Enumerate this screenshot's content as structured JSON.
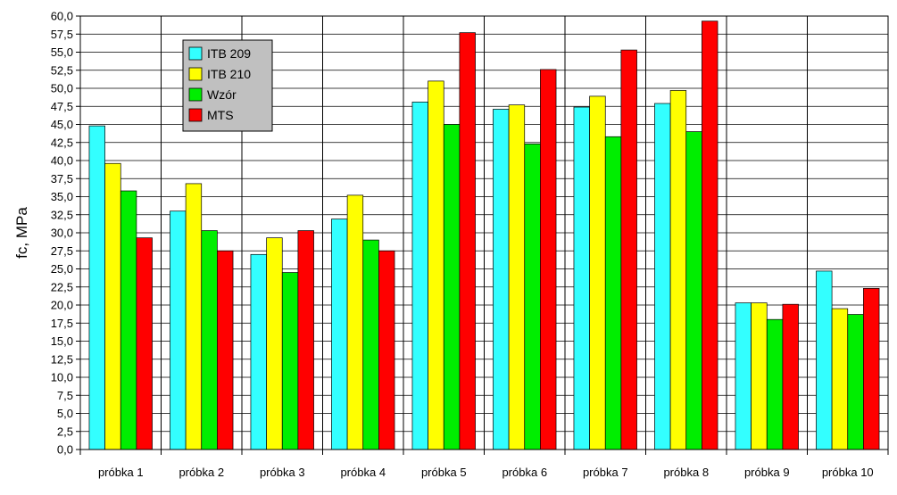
{
  "chart_data": {
    "type": "bar",
    "ylabel": "fc, MPa",
    "ylim": [
      0,
      60
    ],
    "ytick_step": 2.5,
    "grid": true,
    "legend_placement": "top-left",
    "categories": [
      "próbka 1",
      "próbka 2",
      "próbka 3",
      "próbka 4",
      "próbka 5",
      "próbka 6",
      "próbka 7",
      "próbka 8",
      "próbka 9",
      "próbka 10"
    ],
    "series": [
      {
        "name": "ITB 209",
        "color": "#33ffff",
        "values": [
          44.8,
          33.0,
          27.0,
          31.9,
          48.1,
          47.1,
          47.4,
          47.9,
          20.3,
          24.7
        ]
      },
      {
        "name": "ITB 210",
        "color": "#ffff00",
        "values": [
          39.6,
          36.8,
          29.3,
          35.2,
          51.0,
          47.7,
          48.9,
          49.7,
          20.3,
          19.5
        ]
      },
      {
        "name": "Wzór",
        "color": "#00ee00",
        "values": [
          35.8,
          30.3,
          24.5,
          29.0,
          45.0,
          42.3,
          43.3,
          44.0,
          18.0,
          18.7
        ]
      },
      {
        "name": "MTS",
        "color": "#ff0000",
        "values": [
          29.3,
          27.5,
          30.3,
          27.5,
          57.7,
          52.6,
          55.3,
          59.3,
          20.1,
          22.3
        ]
      }
    ]
  }
}
